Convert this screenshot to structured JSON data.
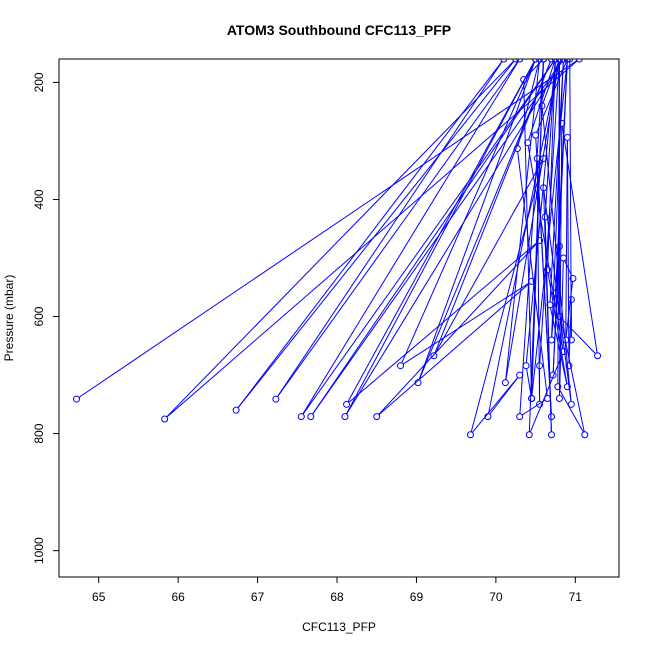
{
  "chart_data": {
    "type": "line",
    "title": "ATOM3 Southbound CFC113_PFP",
    "xlabel": "CFC113_PFP",
    "ylabel": "Pressure (mbar)",
    "xlim": [
      64.5,
      71.55
    ],
    "ylim": [
      1045,
      160
    ],
    "y_reversed": true,
    "x_ticks": [
      65,
      66,
      67,
      68,
      69,
      70,
      71
    ],
    "y_ticks": [
      200,
      400,
      600,
      800,
      1000
    ],
    "grid": false,
    "legend": "none",
    "series": [
      {
        "color": "#0000ff",
        "marker": "open-circle",
        "points": [
          [
            64.72,
            741
          ],
          [
            71.05,
            160
          ],
          [
            65.83,
            775
          ],
          [
            70.25,
            160
          ],
          [
            66.73,
            760
          ],
          [
            70.1,
            160
          ],
          [
            67.23,
            741
          ],
          [
            70.3,
            160
          ],
          [
            67.55,
            771
          ],
          [
            70.75,
            160
          ],
          [
            67.67,
            771
          ],
          [
            70.85,
            160
          ],
          [
            68.1,
            771
          ],
          [
            70.5,
            160
          ],
          [
            68.12,
            750
          ],
          [
            70.55,
            470
          ],
          [
            68.5,
            771
          ],
          [
            70.45,
            540
          ],
          [
            68.8,
            684
          ],
          [
            70.5,
            160
          ],
          [
            69.02,
            713
          ],
          [
            70.7,
            160
          ],
          [
            69.22,
            667
          ],
          [
            70.6,
            330
          ],
          [
            69.68,
            802
          ],
          [
            70.3,
            700
          ],
          [
            69.9,
            771
          ],
          [
            70.8,
            160
          ],
          [
            70.12,
            713
          ],
          [
            70.55,
            160
          ],
          [
            70.27,
            313
          ],
          [
            70.65,
            740
          ],
          [
            70.3,
            771
          ],
          [
            70.6,
            160
          ],
          [
            70.35,
            195
          ],
          [
            70.45,
            740
          ],
          [
            70.38,
            684
          ],
          [
            70.75,
            160
          ],
          [
            70.4,
            303
          ],
          [
            70.85,
            660
          ],
          [
            70.42,
            802
          ],
          [
            70.6,
            160
          ],
          [
            70.45,
            740
          ],
          [
            70.9,
            160
          ],
          [
            70.5,
            290
          ],
          [
            70.7,
            771
          ],
          [
            70.52,
            330
          ],
          [
            70.55,
            750
          ],
          [
            70.55,
            684
          ],
          [
            70.8,
            160
          ],
          [
            70.58,
            240
          ],
          [
            70.95,
            750
          ],
          [
            70.6,
            380
          ],
          [
            70.7,
            802
          ],
          [
            70.62,
            430
          ],
          [
            70.75,
            160
          ],
          [
            70.65,
            520
          ],
          [
            70.9,
            720
          ],
          [
            70.68,
            580
          ],
          [
            70.85,
            160
          ],
          [
            70.7,
            640
          ],
          [
            70.8,
            480
          ],
          [
            70.72,
            700
          ],
          [
            70.9,
            160
          ],
          [
            70.75,
            560
          ],
          [
            71.12,
            802
          ],
          [
            70.78,
            720
          ],
          [
            70.8,
            160
          ],
          [
            70.8,
            600
          ],
          [
            71.28,
            667
          ],
          [
            70.83,
            270
          ],
          [
            70.8,
            740
          ],
          [
            70.85,
            500
          ],
          [
            70.97,
            535
          ],
          [
            70.88,
            640
          ],
          [
            70.9,
            294
          ],
          [
            70.92,
            684
          ],
          [
            70.95,
            571
          ],
          [
            70.95,
            640
          ],
          [
            70.93,
            160
          ]
        ]
      }
    ]
  }
}
